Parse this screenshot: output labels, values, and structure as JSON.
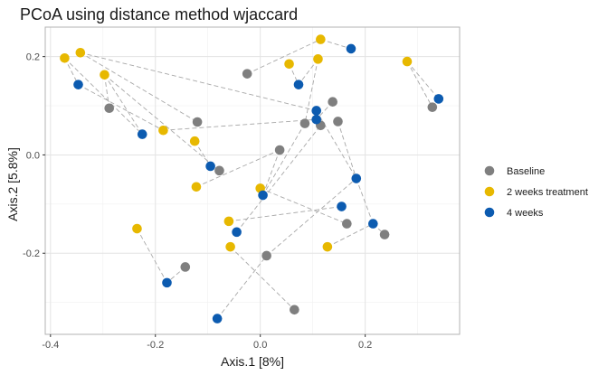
{
  "chart_data": {
    "type": "scatter",
    "title": "PCoA using distance method wjaccard",
    "xlabel": "Axis.1   [8%]",
    "ylabel": "Axis.2   [5.8%]",
    "xlim": [
      -0.41,
      0.38
    ],
    "ylim": [
      -0.365,
      0.26
    ],
    "x_ticks": [
      -0.4,
      -0.2,
      0.0,
      0.2
    ],
    "x_tick_labels": [
      "-0.4",
      "-0.2",
      "0.0",
      "0.2"
    ],
    "y_ticks": [
      -0.2,
      0.0,
      0.2
    ],
    "y_tick_labels": [
      "-0.2",
      "0.0",
      "0.2"
    ],
    "grid": true,
    "legend_position": "right",
    "series": [
      {
        "name": "Baseline",
        "color": "#7f7f7f",
        "points": [
          [
            -0.025,
            0.165
          ],
          [
            0.138,
            0.108
          ],
          [
            -0.288,
            0.095
          ],
          [
            -0.12,
            0.067
          ],
          [
            0.085,
            0.064
          ],
          [
            0.115,
            0.06
          ],
          [
            0.148,
            0.068
          ],
          [
            0.037,
            0.01
          ],
          [
            -0.078,
            -0.032
          ],
          [
            0.165,
            -0.14
          ],
          [
            0.237,
            -0.162
          ],
          [
            -0.143,
            -0.228
          ],
          [
            0.012,
            -0.205
          ],
          [
            0.065,
            -0.315
          ],
          [
            0.328,
            0.097
          ]
        ]
      },
      {
        "name": "2 weeks treatment",
        "color": "#e7b800",
        "points": [
          [
            -0.373,
            0.197
          ],
          [
            -0.343,
            0.208
          ],
          [
            -0.297,
            0.163
          ],
          [
            0.115,
            0.235
          ],
          [
            0.055,
            0.185
          ],
          [
            0.11,
            0.195
          ],
          [
            0.28,
            0.19
          ],
          [
            -0.185,
            0.05
          ],
          [
            -0.125,
            0.028
          ],
          [
            -0.122,
            -0.065
          ],
          [
            0.0,
            -0.068
          ],
          [
            -0.06,
            -0.135
          ],
          [
            -0.235,
            -0.15
          ],
          [
            -0.057,
            -0.187
          ],
          [
            0.128,
            -0.187
          ]
        ]
      },
      {
        "name": "4 weeks",
        "color": "#0c5bb0",
        "points": [
          [
            -0.347,
            0.143
          ],
          [
            -0.225,
            0.042
          ],
          [
            0.173,
            0.216
          ],
          [
            0.073,
            0.143
          ],
          [
            0.107,
            0.09
          ],
          [
            0.107,
            0.072
          ],
          [
            0.34,
            0.114
          ],
          [
            -0.095,
            -0.023
          ],
          [
            0.183,
            -0.048
          ],
          [
            0.005,
            -0.082
          ],
          [
            0.155,
            -0.105
          ],
          [
            -0.045,
            -0.157
          ],
          [
            0.215,
            -0.14
          ],
          [
            -0.178,
            -0.26
          ],
          [
            -0.082,
            -0.333
          ]
        ]
      }
    ],
    "connections": [
      [
        [
          -0.373,
          0.197
        ],
        [
          -0.347,
          0.143
        ]
      ],
      [
        [
          -0.343,
          0.208
        ],
        [
          -0.12,
          0.067
        ]
      ],
      [
        [
          -0.297,
          0.163
        ],
        [
          -0.225,
          0.042
        ]
      ],
      [
        [
          -0.288,
          0.095
        ],
        [
          -0.297,
          0.163
        ]
      ],
      [
        [
          -0.347,
          0.143
        ],
        [
          -0.185,
          0.05
        ]
      ],
      [
        [
          -0.343,
          0.208
        ],
        [
          0.107,
          0.09
        ]
      ],
      [
        [
          -0.373,
          0.197
        ],
        [
          -0.225,
          0.042
        ]
      ],
      [
        [
          -0.025,
          0.165
        ],
        [
          0.115,
          0.235
        ]
      ],
      [
        [
          0.115,
          0.235
        ],
        [
          0.173,
          0.216
        ]
      ],
      [
        [
          0.055,
          0.185
        ],
        [
          0.073,
          0.143
        ]
      ],
      [
        [
          0.11,
          0.195
        ],
        [
          0.073,
          0.143
        ]
      ],
      [
        [
          0.11,
          0.195
        ],
        [
          0.085,
          0.064
        ]
      ],
      [
        [
          0.138,
          0.108
        ],
        [
          0.107,
          0.072
        ]
      ],
      [
        [
          0.28,
          0.19
        ],
        [
          0.34,
          0.114
        ]
      ],
      [
        [
          0.28,
          0.19
        ],
        [
          0.328,
          0.097
        ]
      ],
      [
        [
          -0.185,
          0.05
        ],
        [
          0.107,
          0.072
        ]
      ],
      [
        [
          -0.125,
          0.028
        ],
        [
          -0.095,
          -0.023
        ]
      ],
      [
        [
          -0.297,
          0.163
        ],
        [
          -0.078,
          -0.032
        ]
      ],
      [
        [
          -0.122,
          -0.065
        ],
        [
          0.037,
          0.01
        ]
      ],
      [
        [
          0.037,
          0.01
        ],
        [
          0.005,
          -0.082
        ]
      ],
      [
        [
          0.0,
          -0.068
        ],
        [
          0.165,
          -0.14
        ]
      ],
      [
        [
          -0.06,
          -0.135
        ],
        [
          0.155,
          -0.105
        ]
      ],
      [
        [
          -0.045,
          -0.157
        ],
        [
          0.115,
          0.06
        ]
      ],
      [
        [
          0.148,
          0.068
        ],
        [
          0.183,
          -0.048
        ]
      ],
      [
        [
          0.183,
          -0.048
        ],
        [
          0.215,
          -0.14
        ]
      ],
      [
        [
          0.215,
          -0.14
        ],
        [
          0.237,
          -0.162
        ]
      ],
      [
        [
          0.128,
          -0.187
        ],
        [
          0.215,
          -0.14
        ]
      ],
      [
        [
          -0.057,
          -0.187
        ],
        [
          0.065,
          -0.315
        ]
      ],
      [
        [
          0.012,
          -0.205
        ],
        [
          0.183,
          -0.048
        ]
      ],
      [
        [
          -0.235,
          -0.15
        ],
        [
          -0.178,
          -0.26
        ]
      ],
      [
        [
          -0.143,
          -0.228
        ],
        [
          -0.178,
          -0.26
        ]
      ],
      [
        [
          -0.082,
          -0.333
        ],
        [
          0.012,
          -0.205
        ]
      ],
      [
        [
          0.107,
          0.09
        ],
        [
          0.183,
          -0.048
        ]
      ],
      [
        [
          0.085,
          0.064
        ],
        [
          0.005,
          -0.082
        ]
      ]
    ]
  }
}
